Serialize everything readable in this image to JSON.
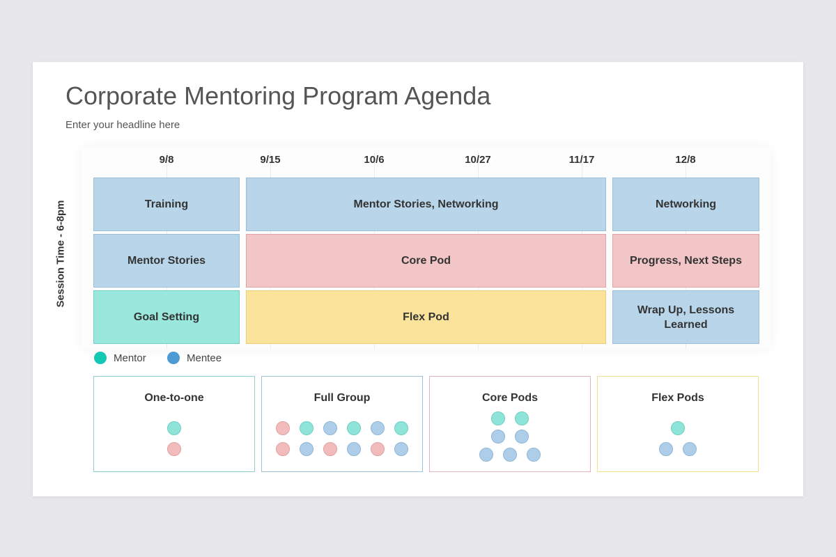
{
  "header": {
    "title": "Corporate Mentoring Program Agenda",
    "subtitle": "Enter your headline here"
  },
  "schedule": {
    "axis_label": "Session Time - 6-8pm",
    "dates": [
      "9/8",
      "9/15",
      "10/6",
      "10/27",
      "11/17",
      "12/8"
    ],
    "rows": [
      [
        "Training",
        "Mentor Stories, Networking",
        "Networking"
      ],
      [
        "Mentor Stories",
        "Core Pod",
        "Progress, Next Steps"
      ],
      [
        "Goal Setting",
        "Flex Pod",
        "Wrap Up, Lessons Learned"
      ]
    ],
    "colors": {
      "blue": "#b8d5ea",
      "red": "#f2c6c6",
      "teal": "#99e7dd",
      "yellow": "#fbe39b"
    }
  },
  "legend": {
    "mentor": {
      "label": "Mentor",
      "color": "#13c9b4"
    },
    "mentee": {
      "label": "Mentee",
      "color": "#4e9ad4"
    }
  },
  "groups": [
    {
      "title": "One-to-one",
      "border": "#8fcfd0"
    },
    {
      "title": "Full Group",
      "border": "#9fc3d6"
    },
    {
      "title": "Core Pods",
      "border": "#e3b3b8"
    },
    {
      "title": "Flex Pods",
      "border": "#f2df8f"
    }
  ]
}
